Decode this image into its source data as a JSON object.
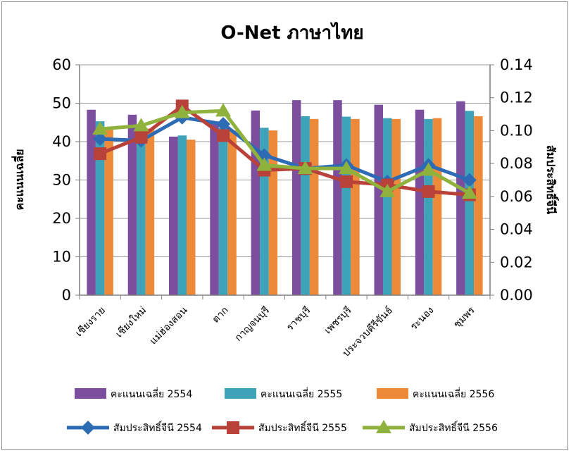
{
  "chart_data": {
    "type": "bar",
    "title": "O-Net ภาษาไทย",
    "ylabel": "คะแนนเฉลี่ย",
    "y2label": "สัมประสิทธิ์จีนี",
    "ylim": [
      0,
      60
    ],
    "y2lim": [
      0,
      0.14
    ],
    "yticks": [
      "0",
      "10",
      "20",
      "30",
      "40",
      "50",
      "60"
    ],
    "y2ticks": [
      "0.00",
      "0.02",
      "0.04",
      "0.06",
      "0.08",
      "0.10",
      "0.12",
      "0.14"
    ],
    "grid": true,
    "legend_position": "bottom",
    "categories": [
      "เชียงราย",
      "เชียงใหม่",
      "แม่ฮ่องสอน",
      "ตาก",
      "กาญจนบุรี",
      "ราชบุรี",
      "เพชรบุรี",
      "ประจวบคีรีขันธ์",
      "ระนอง",
      "ชุมพร"
    ],
    "series": [
      {
        "name": "คะแนนเฉลี่ย 2554",
        "type": "bar",
        "axis": "left",
        "color": "#7b4f9d",
        "values": [
          48.3,
          47.0,
          41.3,
          45.0,
          48.1,
          50.8,
          50.8,
          49.6,
          48.3,
          50.5
        ]
      },
      {
        "name": "คะแนนเฉลี่ย 2555",
        "type": "bar",
        "axis": "left",
        "color": "#3ea3b8",
        "values": [
          45.3,
          43.5,
          41.6,
          43.6,
          43.6,
          46.6,
          46.5,
          46.1,
          45.9,
          48.0
        ]
      },
      {
        "name": "คะแนนเฉลี่ย 2556",
        "type": "bar",
        "axis": "left",
        "color": "#ec8a3a",
        "values": [
          43.3,
          43.4,
          40.5,
          42.9,
          42.9,
          45.9,
          45.9,
          45.9,
          46.1,
          46.6
        ]
      },
      {
        "name": "สัมประสิทธิ์จีนี 2554",
        "type": "line",
        "axis": "right",
        "color": "#2e6bb5",
        "marker": "diamond",
        "values": [
          0.095,
          0.094,
          0.108,
          0.104,
          0.085,
          0.077,
          0.079,
          0.069,
          0.079,
          0.07
        ]
      },
      {
        "name": "สัมประสิทธิ์จีนี 2555",
        "type": "line",
        "axis": "right",
        "color": "#b8413a",
        "marker": "square",
        "values": [
          0.086,
          0.096,
          0.115,
          0.097,
          0.076,
          0.077,
          0.069,
          0.067,
          0.063,
          0.061
        ]
      },
      {
        "name": "สัมประสิทธิ์จีนี 2556",
        "type": "line",
        "axis": "right",
        "color": "#8fb23c",
        "marker": "triangle",
        "values": [
          0.101,
          0.103,
          0.111,
          0.112,
          0.079,
          0.077,
          0.077,
          0.063,
          0.076,
          0.062
        ]
      }
    ]
  }
}
